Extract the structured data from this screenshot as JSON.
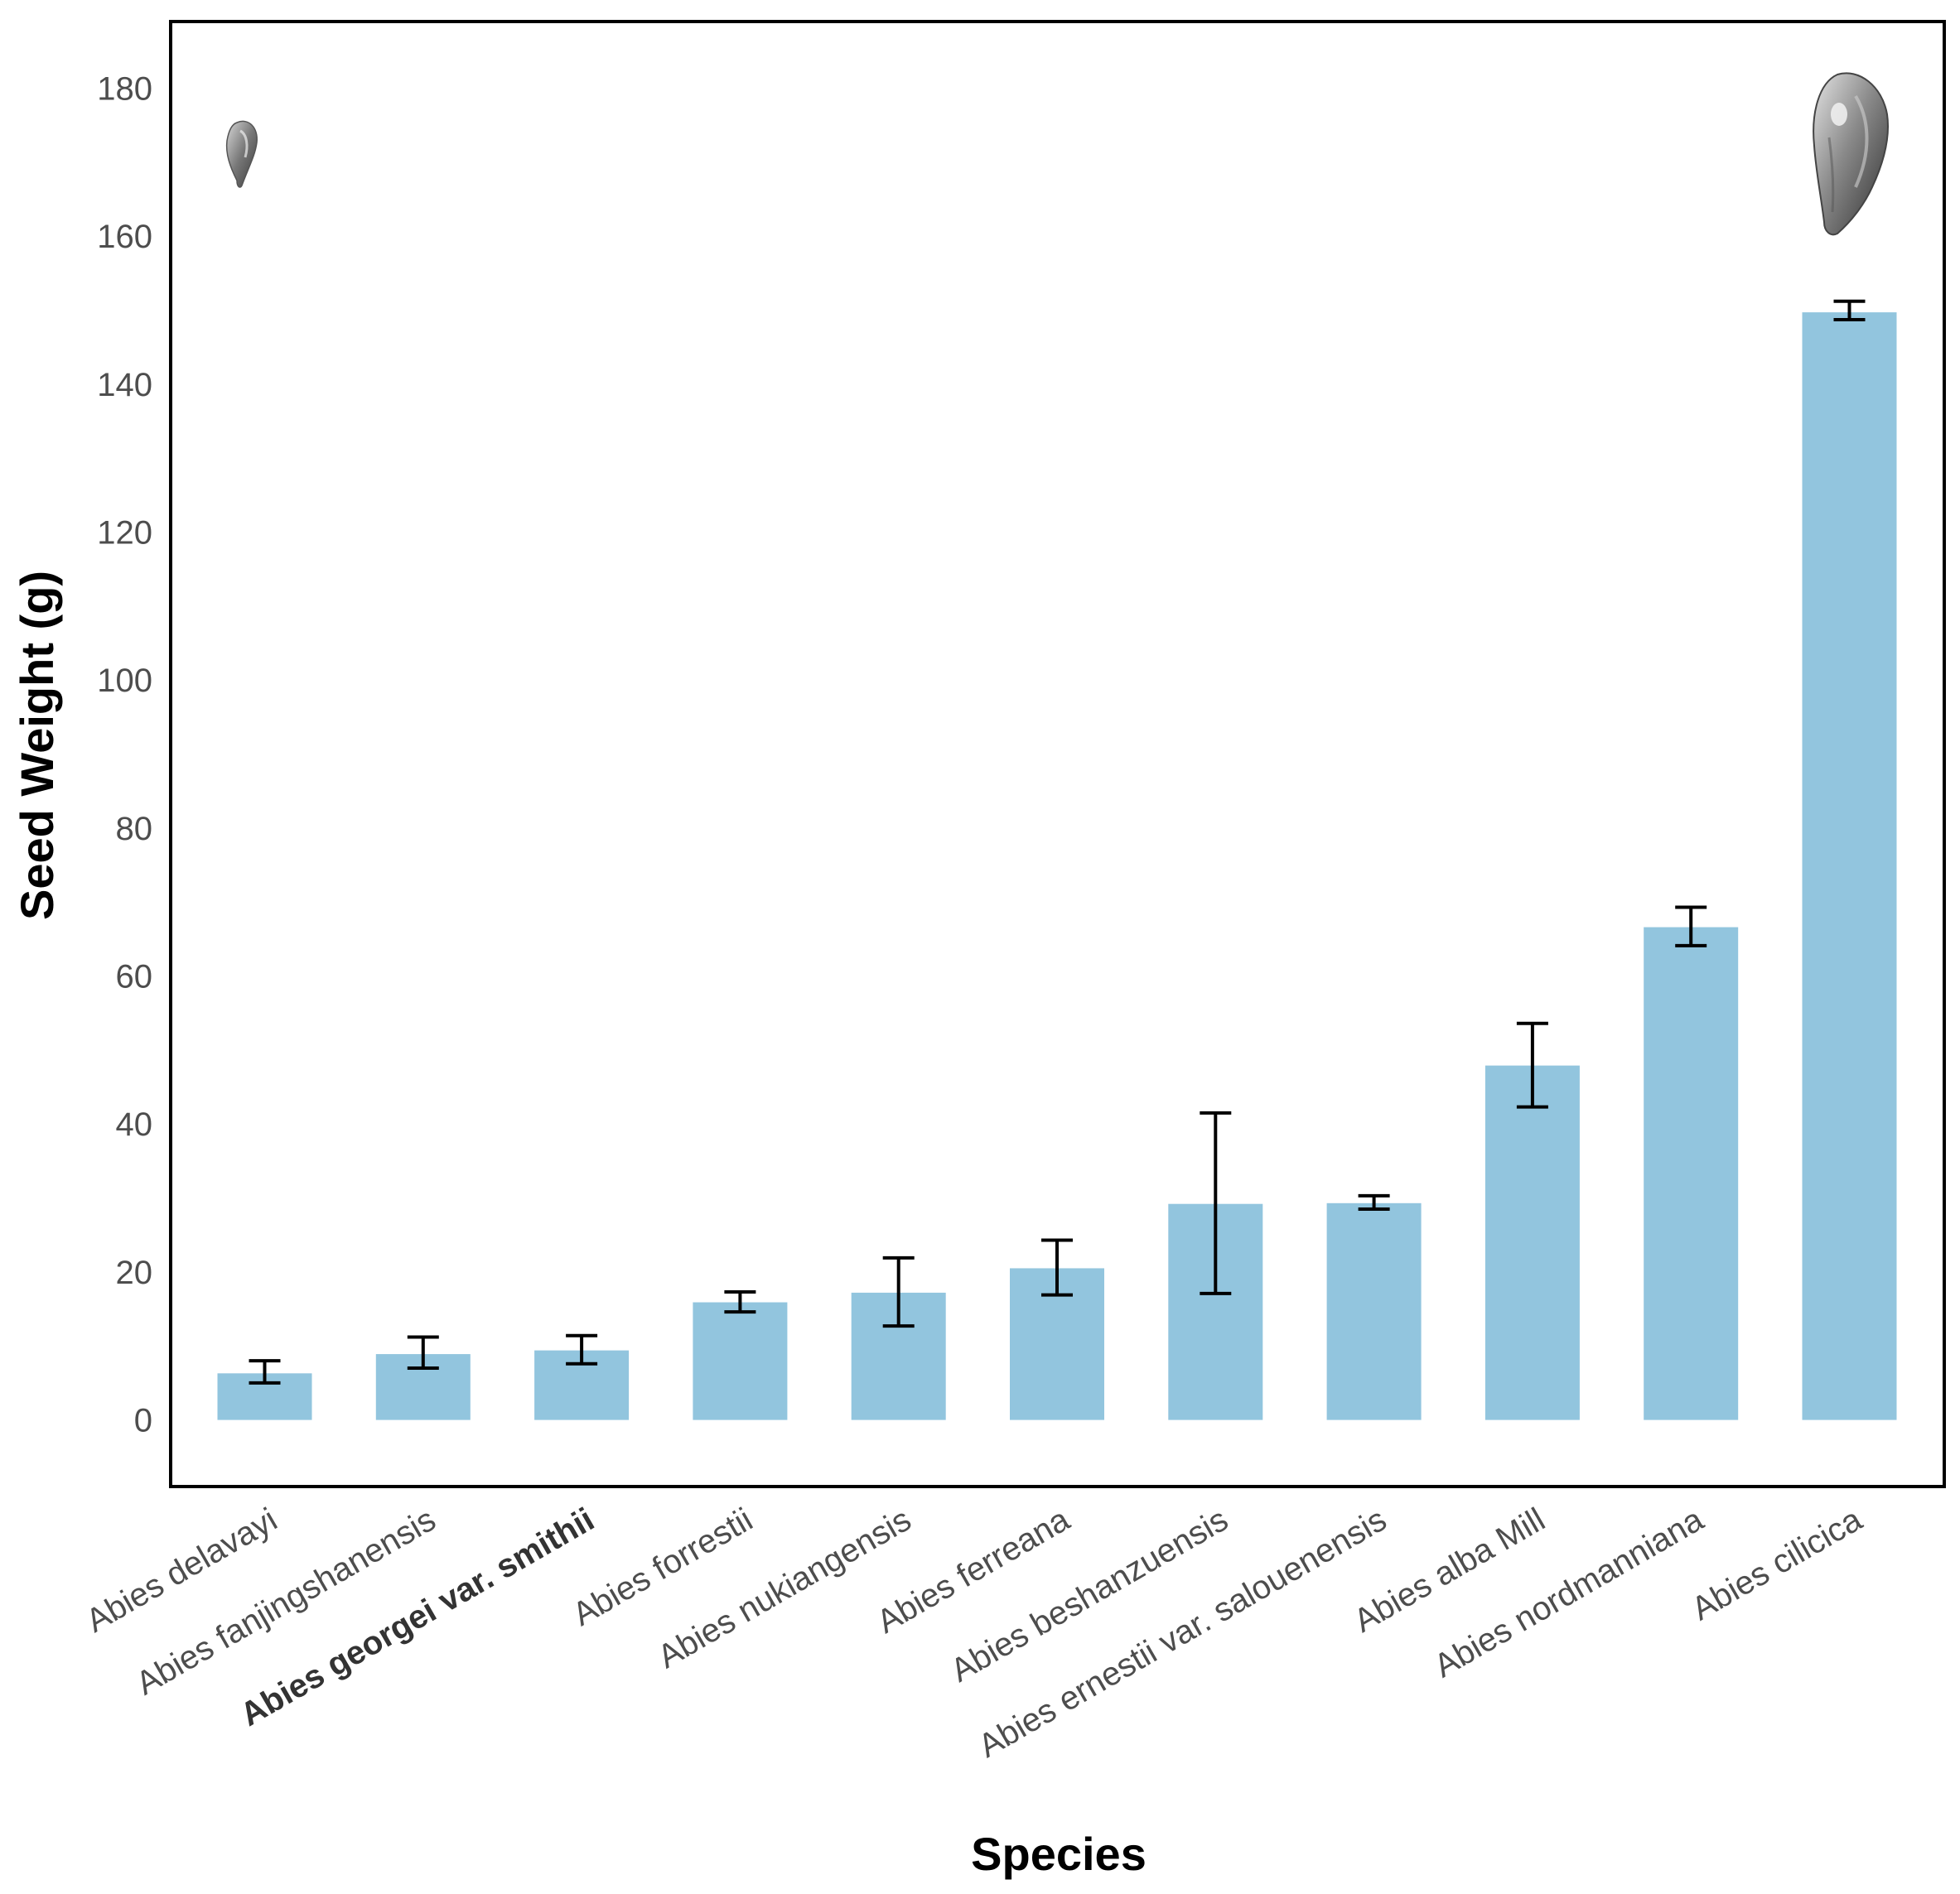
{
  "chart_data": {
    "type": "bar",
    "title": "",
    "xlabel": "Species",
    "ylabel": "Seed Weight (g)",
    "ylim": [
      -9,
      189
    ],
    "yticks": [
      0,
      20,
      40,
      60,
      80,
      100,
      120,
      140,
      160,
      180
    ],
    "grid": false,
    "bar_color": "#92c5de",
    "errorbar_color": "#000000",
    "categories": [
      "Abies delavayi",
      "Abies fanjingshanensis",
      "Abies georgei var. smithii",
      "Abies forrestii",
      "Abies nukiangensis",
      "Abies ferreana",
      "Abies beshanzuensis",
      "Abies ernestii var. salouenensis",
      "Abies alba Mill",
      "Abies nordmanniana",
      "Abies cilicica"
    ],
    "highlighted_category": "Abies georgei var. smithii",
    "values": [
      6.3,
      8.9,
      9.4,
      15.9,
      17.2,
      20.5,
      29.2,
      29.3,
      47.9,
      66.6,
      149.7
    ],
    "error_low": [
      5.0,
      7.0,
      7.6,
      14.6,
      12.7,
      16.9,
      17.1,
      28.5,
      42.3,
      64.1,
      148.7
    ],
    "error_high": [
      8.0,
      11.2,
      11.4,
      17.3,
      21.9,
      24.3,
      41.5,
      30.3,
      53.6,
      69.3,
      151.2
    ],
    "seed_images": [
      {
        "category": "Abies delavayi",
        "icon": "seed-icon-small"
      },
      {
        "category": "Abies cilicica",
        "icon": "seed-icon-large"
      }
    ]
  }
}
